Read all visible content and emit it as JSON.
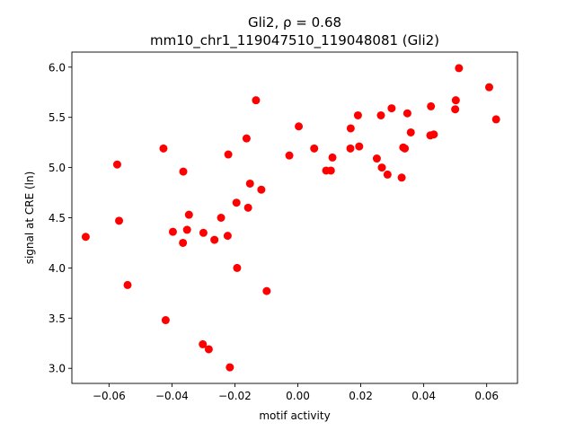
{
  "chart_data": {
    "type": "scatter",
    "title_line1": "Gli2, ρ = 0.68",
    "title_line2": "mm10_chr1_119047510_119048081 (Gli2)",
    "xlabel": "motif activity",
    "ylabel": "signal at CRE (ln)",
    "xlim": [
      -0.0718,
      0.0698
    ],
    "ylim": [
      2.85,
      6.15
    ],
    "xticks": [
      -0.06,
      -0.04,
      -0.02,
      0.0,
      0.02,
      0.04,
      0.06
    ],
    "xtick_labels": [
      "−0.06",
      "−0.04",
      "−0.02",
      "0.00",
      "0.02",
      "0.04",
      "0.06"
    ],
    "yticks": [
      3.0,
      3.5,
      4.0,
      4.5,
      5.0,
      5.5,
      6.0
    ],
    "ytick_labels": [
      "3.0",
      "3.5",
      "4.0",
      "4.5",
      "5.0",
      "5.5",
      "6.0"
    ],
    "grid": false,
    "marker_color": "#ff0000",
    "series": [
      {
        "x": [
          -0.0674,
          -0.0574,
          -0.0568,
          -0.0541,
          -0.0427,
          -0.042,
          -0.0397,
          -0.0365,
          -0.0364,
          -0.0352,
          -0.0346,
          -0.0302,
          -0.03,
          -0.0283,
          -0.0265,
          -0.0244,
          -0.0223,
          -0.0221,
          -0.0216,
          -0.0195,
          -0.0193,
          -0.0163,
          -0.0158,
          -0.0152,
          -0.0133,
          -0.0116,
          -0.0099,
          -0.0027,
          0.0003,
          0.0052,
          0.009,
          0.0105,
          0.011,
          0.0167,
          0.0168,
          0.0191,
          0.0195,
          0.0251,
          0.0264,
          0.0267,
          0.0285,
          0.0298,
          0.033,
          0.0335,
          0.034,
          0.0348,
          0.0359,
          0.0421,
          0.0423,
          0.0432,
          0.05,
          0.0502,
          0.0512,
          0.0608,
          0.063
        ],
        "y": [
          4.31,
          5.03,
          4.47,
          3.83,
          5.19,
          3.48,
          4.36,
          4.25,
          4.96,
          4.38,
          4.53,
          3.24,
          4.35,
          3.19,
          4.28,
          4.5,
          4.32,
          5.13,
          3.01,
          4.65,
          4.0,
          5.29,
          4.6,
          4.84,
          5.67,
          4.78,
          3.77,
          5.12,
          5.41,
          5.19,
          4.97,
          4.97,
          5.1,
          5.19,
          5.39,
          5.52,
          5.21,
          5.09,
          5.52,
          5.0,
          4.93,
          5.59,
          4.9,
          5.2,
          5.19,
          5.54,
          5.35,
          5.32,
          5.61,
          5.33,
          5.58,
          5.67,
          5.99,
          5.8,
          5.48
        ]
      }
    ]
  }
}
